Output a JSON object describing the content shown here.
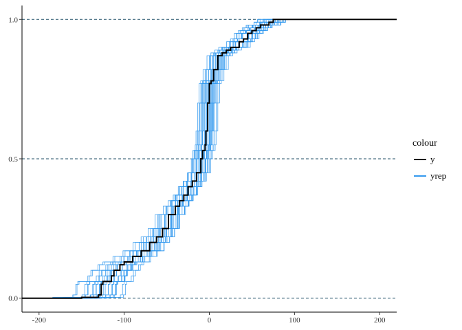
{
  "chart_data": {
    "type": "line",
    "title": "",
    "xlabel": "",
    "ylabel": "",
    "xlim": [
      -220,
      220
    ],
    "ylim": [
      -0.05,
      1.05
    ],
    "x_ticks": [
      -200,
      -100,
      0,
      100,
      200
    ],
    "x_tick_labels": [
      "-200",
      "-100",
      "0",
      "100",
      "200"
    ],
    "y_ticks": [
      0,
      0.5,
      1
    ],
    "y_tick_labels": [
      "0.0",
      "0.5",
      "1.0"
    ],
    "reference_lines_y": [
      0,
      0.5,
      1
    ],
    "grid": false,
    "legend": {
      "title": "colour",
      "placement": "right",
      "entries": [
        "y",
        "yrep"
      ]
    },
    "colors": {
      "y": "#000000",
      "yrep": "#3399ee",
      "reference_line": "#1f4e66"
    },
    "series": [
      {
        "name": "y",
        "x": [
          -220,
          -180,
          -150,
          -130,
          -127,
          -125,
          -115,
          -112,
          -105,
          -100,
          -90,
          -80,
          -70,
          -62,
          -55,
          -48,
          -40,
          -35,
          -30,
          -25,
          -20,
          -15,
          -10,
          -8,
          -5,
          -4,
          -2,
          0,
          2,
          5,
          10,
          15,
          20,
          25,
          30,
          35,
          40,
          45,
          50,
          55,
          60,
          70,
          75,
          80,
          120,
          220
        ],
        "y": [
          0,
          0.0,
          0.003,
          0.012,
          0.05,
          0.06,
          0.08,
          0.1,
          0.12,
          0.13,
          0.15,
          0.17,
          0.2,
          0.22,
          0.25,
          0.3,
          0.33,
          0.35,
          0.37,
          0.4,
          0.42,
          0.45,
          0.5,
          0.53,
          0.55,
          0.6,
          0.7,
          0.77,
          0.78,
          0.82,
          0.87,
          0.88,
          0.89,
          0.9,
          0.9,
          0.92,
          0.93,
          0.95,
          0.96,
          0.97,
          0.98,
          0.99,
          1.0,
          1.0,
          1.0,
          1.0
        ]
      },
      {
        "name": "yrep",
        "shift": -12,
        "scale": 0.92
      },
      {
        "name": "yrep",
        "shift": -9,
        "scale": 1.05
      },
      {
        "name": "yrep",
        "shift": -6,
        "scale": 0.97
      },
      {
        "name": "yrep",
        "shift": -4,
        "scale": 1.12
      },
      {
        "name": "yrep",
        "shift": -2,
        "scale": 0.88
      },
      {
        "name": "yrep",
        "shift": 0,
        "scale": 1.0
      },
      {
        "name": "yrep",
        "shift": 1,
        "scale": 1.08
      },
      {
        "name": "yrep",
        "shift": 2,
        "scale": 0.95
      },
      {
        "name": "yrep",
        "shift": 3,
        "scale": 1.15
      },
      {
        "name": "yrep",
        "shift": 4,
        "scale": 0.9
      },
      {
        "name": "yrep",
        "shift": 5,
        "scale": 1.02
      },
      {
        "name": "yrep",
        "shift": 6,
        "scale": 0.85
      },
      {
        "name": "yrep",
        "shift": 7,
        "scale": 1.1
      },
      {
        "name": "yrep",
        "shift": 8,
        "scale": 0.93
      },
      {
        "name": "yrep",
        "shift": -7,
        "scale": 1.18
      },
      {
        "name": "yrep",
        "shift": -5,
        "scale": 0.82
      },
      {
        "name": "yrep",
        "shift": -1,
        "scale": 1.04
      },
      {
        "name": "yrep",
        "shift": 10,
        "scale": 0.98
      },
      {
        "name": "yrep",
        "shift": -10,
        "scale": 1.0
      },
      {
        "name": "yrep",
        "shift": 3,
        "scale": 0.8
      },
      {
        "name": "yrep",
        "shift": -3,
        "scale": 1.2
      },
      {
        "name": "yrep",
        "shift": 6,
        "scale": 1.06
      },
      {
        "name": "yrep",
        "shift": -8,
        "scale": 0.9
      },
      {
        "name": "yrep",
        "shift": 12,
        "scale": 1.03
      },
      {
        "name": "yrep",
        "shift": 0,
        "scale": 0.87
      }
    ]
  }
}
